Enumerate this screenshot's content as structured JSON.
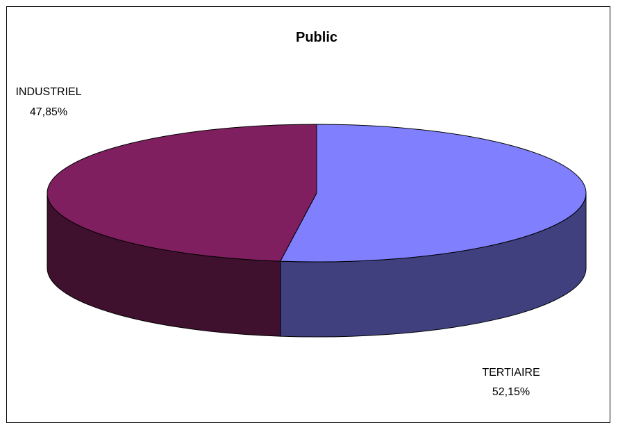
{
  "chart_data": {
    "type": "pie",
    "style": "3d",
    "title": "Public",
    "slices": [
      {
        "label": "TERTIAIRE",
        "value": 52.15,
        "value_text": "52,15%",
        "color": "#8080FF",
        "side_color": "#40407F"
      },
      {
        "label": "INDUSTRIEL",
        "value": 47.85,
        "value_text": "47,85%",
        "color": "#7F1F5F",
        "side_color": "#40102F"
      }
    ],
    "legend": "none"
  }
}
